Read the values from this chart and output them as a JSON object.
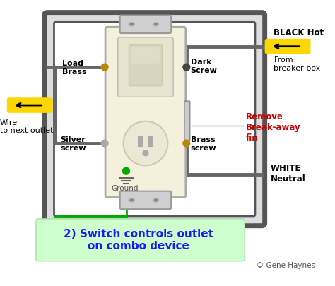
{
  "bg_color": "#ffffff",
  "box_color": "#555555",
  "wire_gray": "#666666",
  "wire_yellow": "#FFD700",
  "device_color": "#F5F0DC",
  "device_border": "#888888",
  "title": "2) Switch controls outlet\non combo device",
  "title_color": "#1a1aff",
  "title_bg": "#ccffcc",
  "copyright": "© Gene Haynes",
  "label_black_hot": "BLACK Hot",
  "label_from_breaker": "From\nbreaker box",
  "label_wire_next": "Wire\nto next outlet",
  "label_white_neutral": "WHITE\nNeutral",
  "label_load_brass": "Load\nBrass",
  "label_dark_screw": "Dark\nScrew",
  "label_silver_screw": "Silver\nscrew",
  "label_brass_screw": "Brass\nscrew",
  "label_ground": "Ground",
  "label_remove": "Remove\nBreak-away\nfin",
  "remove_color": "#cc0000"
}
